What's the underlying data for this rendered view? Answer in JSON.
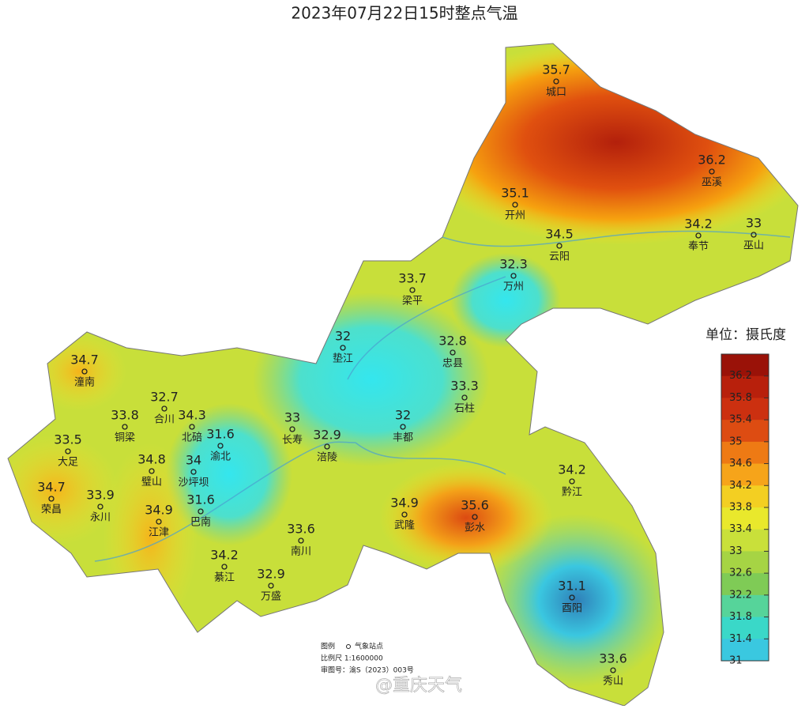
{
  "title": "2023年07月22日15时整点气温",
  "stations": [
    {
      "name": "城口",
      "value": 35.7
    },
    {
      "name": "巫溪",
      "value": 36.2
    },
    {
      "name": "开州",
      "value": 35.1
    },
    {
      "name": "云阳",
      "value": 34.5
    },
    {
      "name": "奉节",
      "value": 34.2
    },
    {
      "name": "巫山",
      "value": 33
    },
    {
      "name": "万州",
      "value": 32.3
    },
    {
      "name": "梁平",
      "value": 33.7
    },
    {
      "name": "垫江",
      "value": 32
    },
    {
      "name": "忠县",
      "value": 32.8
    },
    {
      "name": "石柱",
      "value": 33.3
    },
    {
      "name": "丰都",
      "value": 32
    },
    {
      "name": "长寿",
      "value": 33
    },
    {
      "name": "涪陵",
      "value": 32.9
    },
    {
      "name": "渝北",
      "value": 31.6
    },
    {
      "name": "巴南",
      "value": 31.6
    },
    {
      "name": "北碚",
      "value": 34.3
    },
    {
      "name": "合川",
      "value": 32.7
    },
    {
      "name": "潼南",
      "value": 34.7
    },
    {
      "name": "铜梁",
      "value": 33.8
    },
    {
      "name": "大足",
      "value": 33.5
    },
    {
      "name": "璧山",
      "value": 34.8
    },
    {
      "name": "沙坪坝",
      "value": 34
    },
    {
      "name": "荣昌",
      "value": 34.7
    },
    {
      "name": "永川",
      "value": 33.9
    },
    {
      "name": "江津",
      "value": 34.9
    },
    {
      "name": "武隆",
      "value": 34.9
    },
    {
      "name": "彭水",
      "value": 35.6
    },
    {
      "name": "黔江",
      "value": 34.2
    },
    {
      "name": "南川",
      "value": 33.6
    },
    {
      "name": "綦江",
      "value": 34.2
    },
    {
      "name": "万盛",
      "value": 32.9
    },
    {
      "name": "酉阳",
      "value": 31.1
    },
    {
      "name": "秀山",
      "value": 33.6
    }
  ],
  "legend": {
    "title": "单位：摄氏度",
    "ticks": [
      36.2,
      35.8,
      35.4,
      35,
      34.6,
      34.2,
      33.8,
      33.4,
      33,
      32.6,
      32.2,
      31.8,
      31.4,
      31
    ]
  },
  "notes": {
    "legend_label": "图例",
    "station_label": "气象站点",
    "scale": "比例尺  1:1600000",
    "approval": "审图号：渝S（2023）003号"
  },
  "watermark": "@重庆天气"
}
